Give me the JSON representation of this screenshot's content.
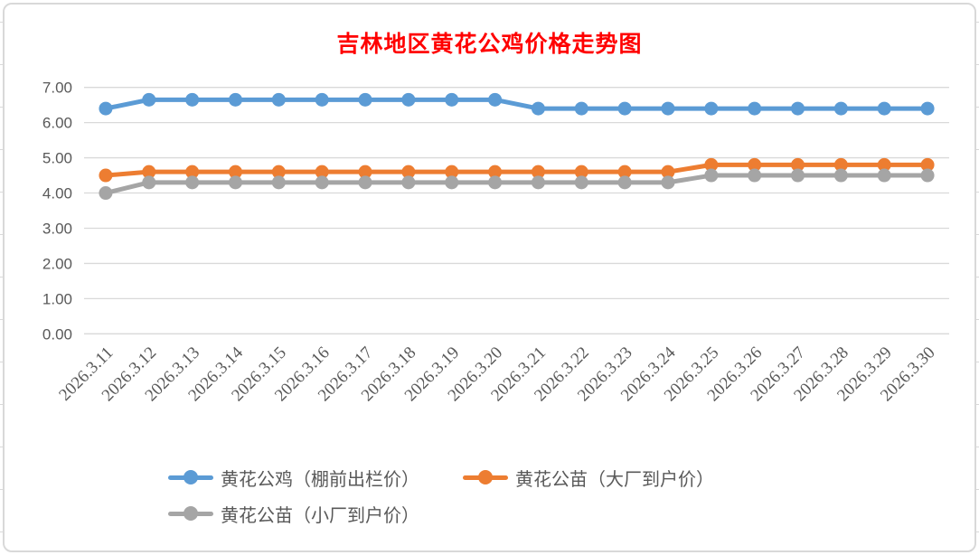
{
  "chart_data": {
    "type": "line",
    "title": "吉林地区黄花公鸡价格走势图",
    "title_color": "#FF0000",
    "categories": [
      "2026.3.11",
      "2026.3.12",
      "2026.3.13",
      "2026.3.14",
      "2026.3.15",
      "2026.3.16",
      "2026.3.17",
      "2026.3.18",
      "2026.3.19",
      "2026.3.20",
      "2026.3.21",
      "2026.3.22",
      "2026.3.23",
      "2026.3.24",
      "2026.3.25",
      "2026.3.26",
      "2026.3.27",
      "2026.3.28",
      "2026.3.29",
      "2026.3.30"
    ],
    "series": [
      {
        "name": "黄花公鸡（棚前出栏价）",
        "color": "#5B9BD5",
        "values": [
          6.4,
          6.65,
          6.65,
          6.65,
          6.65,
          6.65,
          6.65,
          6.65,
          6.65,
          6.65,
          6.4,
          6.4,
          6.4,
          6.4,
          6.4,
          6.4,
          6.4,
          6.4,
          6.4,
          6.4
        ]
      },
      {
        "name": "黄花公苗（大厂到户价）",
        "color": "#ED7D31",
        "values": [
          4.5,
          4.6,
          4.6,
          4.6,
          4.6,
          4.6,
          4.6,
          4.6,
          4.6,
          4.6,
          4.6,
          4.6,
          4.6,
          4.6,
          4.8,
          4.8,
          4.8,
          4.8,
          4.8,
          4.8
        ]
      },
      {
        "name": "黄花公苗（小厂到户价）",
        "color": "#A5A5A5",
        "values": [
          4.0,
          4.3,
          4.3,
          4.3,
          4.3,
          4.3,
          4.3,
          4.3,
          4.3,
          4.3,
          4.3,
          4.3,
          4.3,
          4.3,
          4.5,
          4.5,
          4.5,
          4.5,
          4.5,
          4.5
        ]
      }
    ],
    "ylim": [
      0,
      7
    ],
    "ytick_step": 1,
    "ytick_labels": [
      "0.00",
      "1.00",
      "2.00",
      "3.00",
      "4.00",
      "5.00",
      "6.00",
      "7.00"
    ],
    "grid": true,
    "gridline_color": "#D9D9D9",
    "axis_text_color": "#595959",
    "legend_position": "bottom",
    "xlabel": "",
    "ylabel": ""
  }
}
